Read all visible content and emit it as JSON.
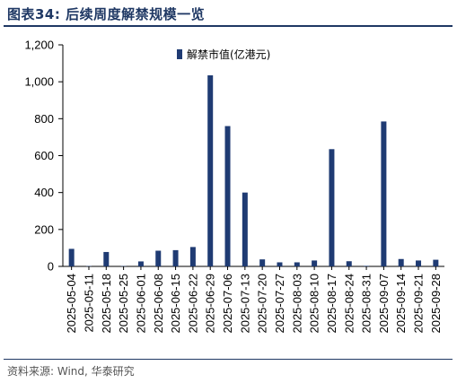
{
  "header": {
    "title": "图表34:  后续周度解禁规模一览"
  },
  "footer": {
    "source": "资料来源: Wind, 华泰研究"
  },
  "chart_data": {
    "type": "bar",
    "title": "",
    "xlabel": "",
    "ylabel": "",
    "ylim": [
      0,
      1200
    ],
    "yticks": [
      0,
      200,
      400,
      600,
      800,
      1000,
      1200
    ],
    "ytick_labels": [
      "0",
      "200",
      "400",
      "600",
      "800",
      "1,000",
      "1,200"
    ],
    "grid": false,
    "legend_position": "top-center",
    "bar_color": "#1f3b73",
    "categories": [
      "2025-05-04",
      "2025-05-11",
      "2025-05-18",
      "2025-05-25",
      "2025-06-01",
      "2025-06-08",
      "2025-06-15",
      "2025-06-22",
      "2025-06-29",
      "2025-07-06",
      "2025-07-13",
      "2025-07-20",
      "2025-07-27",
      "2025-08-03",
      "2025-08-10",
      "2025-08-17",
      "2025-08-24",
      "2025-08-31",
      "2025-09-07",
      "2025-09-14",
      "2025-09-21",
      "2025-09-28"
    ],
    "series": [
      {
        "name": "解禁市值(亿港元)",
        "values": [
          95,
          2,
          78,
          2,
          27,
          85,
          88,
          105,
          1035,
          760,
          400,
          38,
          22,
          22,
          32,
          635,
          28,
          3,
          785,
          40,
          32,
          36
        ]
      }
    ]
  }
}
